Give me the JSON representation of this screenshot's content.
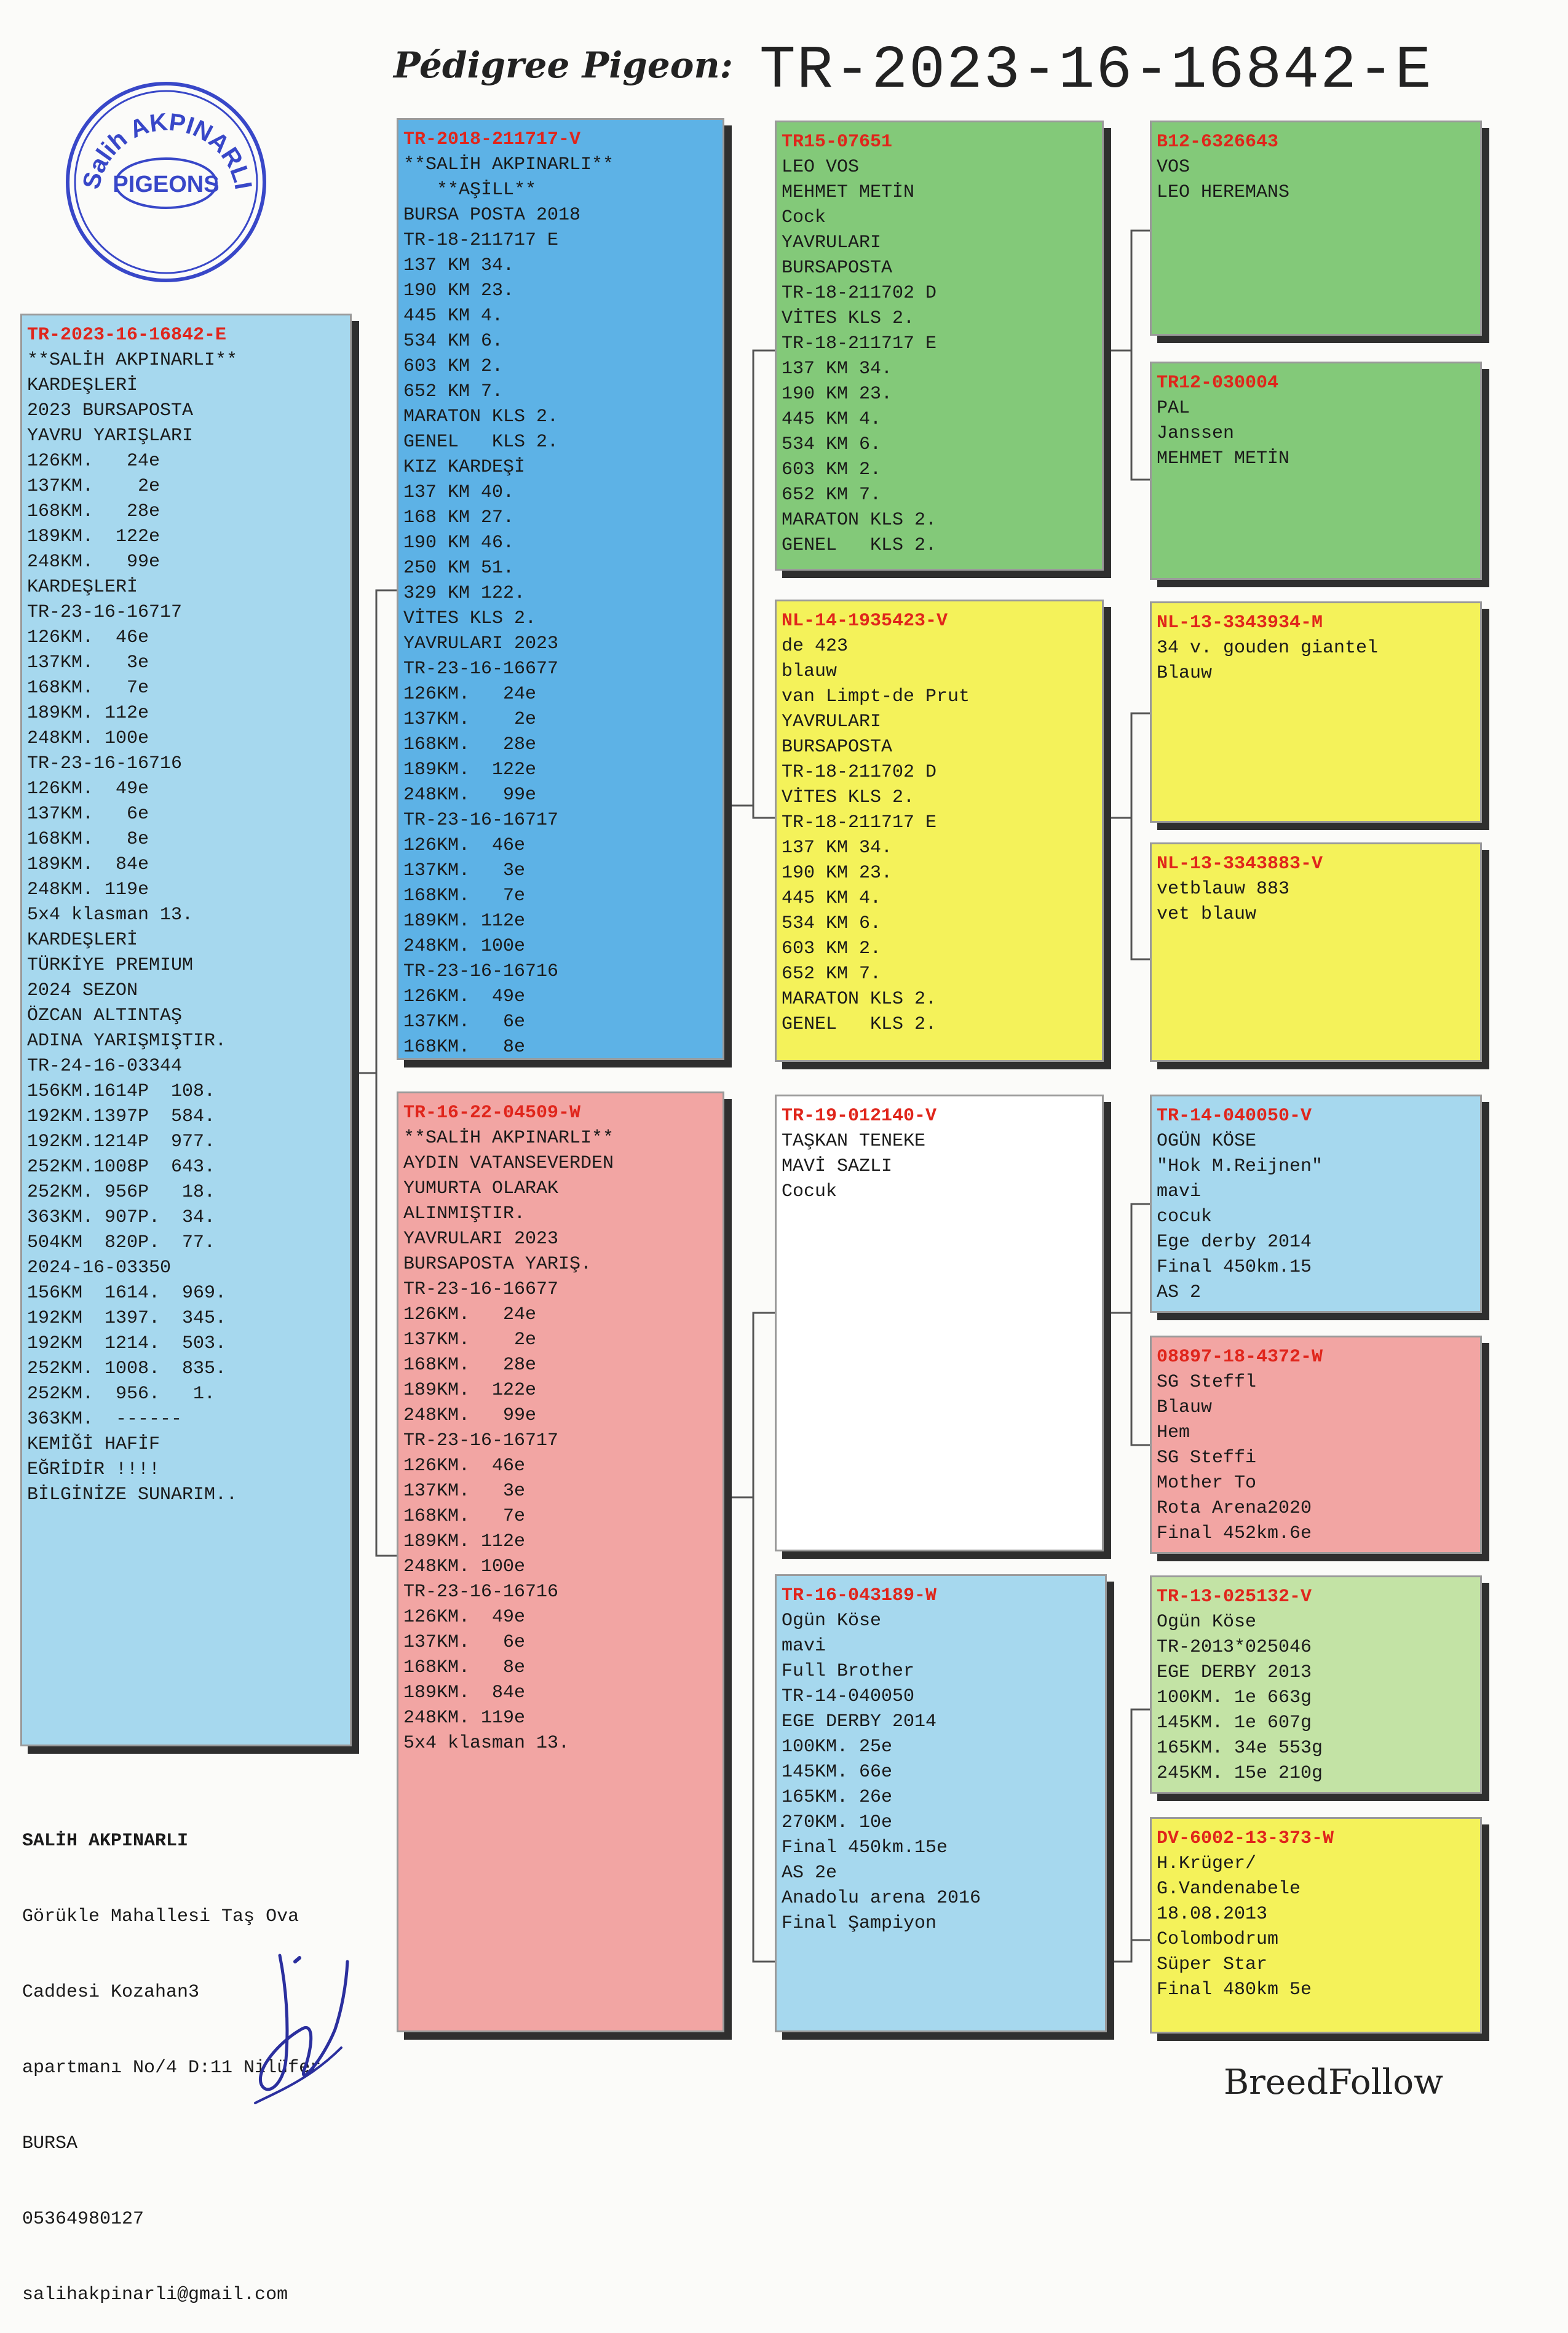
{
  "header": {
    "label": "Pédigree Pigeon:",
    "ring": "TR-2023-16-16842-E"
  },
  "stamp": {
    "top": "Salih AKPINARLI",
    "center": "PIGEONS"
  },
  "subject": {
    "ring": "TR-2023-16-16842-E",
    "lines": [
      "**SALİH AKPINARLI**",
      "KARDEŞLERİ",
      "2023 BURSAPOSTA",
      "YAVRU YARIŞLARI",
      "126KM.   24e",
      "137KM.    2e",
      "168KM.   28e",
      "189KM.  122e",
      "248KM.   99e",
      "KARDEŞLERİ",
      "TR-23-16-16717",
      "126KM.  46e",
      "137KM.   3e",
      "168KM.   7e",
      "189KM. 112e",
      "248KM. 100e",
      "TR-23-16-16716",
      "126KM.  49e",
      "137KM.   6e",
      "168KM.   8e",
      "189KM.  84e",
      "248KM. 119e",
      "5x4 klasman 13.",
      "KARDEŞLERİ",
      "TÜRKİYE PREMIUM",
      "2024 SEZON",
      "ÖZCAN ALTINTAŞ",
      "ADINA YARIŞMIŞTIR.",
      "TR-24-16-03344",
      "156KM.1614P  108.",
      "192KM.1397P  584.",
      "192KM.1214P  977.",
      "252KM.1008P  643.",
      "252KM. 956P   18.",
      "363KM. 907P.  34.",
      "504KM  820P.  77.",
      "2024-16-03350",
      "156KM  1614.  969.",
      "192KM  1397.  345.",
      "192KM  1214.  503.",
      "252KM. 1008.  835.",
      "252KM.  956.   1.",
      "363KM.  ------",
      "KEMİĞİ HAFİF",
      "EĞRİDİR !!!!",
      "BİLGİNİZE SUNARIM.."
    ]
  },
  "sire": {
    "ring": "TR-2018-211717-V",
    "lines": [
      "**SALİH AKPINARLI**",
      "   **AŞİLL**",
      "BURSA POSTA 2018",
      "TR-18-211717 E",
      "137 KM 34.",
      "190 KM 23.",
      "445 KM 4.",
      "534 KM 6.",
      "603 KM 2.",
      "652 KM 7.",
      "MARATON KLS 2.",
      "GENEL   KLS 2.",
      "KIZ KARDEŞİ",
      "137 KM 40.",
      "168 KM 27.",
      "190 KM 46.",
      "250 KM 51.",
      "329 KM 122.",
      "VİTES KLS 2.",
      "YAVRULARI 2023",
      "TR-23-16-16677",
      "126KM.   24e",
      "137KM.    2e",
      "168KM.   28e",
      "189KM.  122e",
      "248KM.   99e",
      "TR-23-16-16717",
      "126KM.  46e",
      "137KM.   3e",
      "168KM.   7e",
      "189KM. 112e",
      "248KM. 100e",
      "TR-23-16-16716",
      "126KM.  49e",
      "137KM.   6e",
      "168KM.   8e"
    ]
  },
  "dam": {
    "ring": "TR-16-22-04509-W",
    "lines": [
      "**SALİH AKPINARLI**",
      "AYDIN VATANSEVERDEN",
      "YUMURTA OLARAK",
      "ALINMIŞTIR.",
      "YAVRULARI 2023",
      "BURSAPOSTA YARIŞ.",
      "TR-23-16-16677",
      "126KM.   24e",
      "137KM.    2e",
      "168KM.   28e",
      "189KM.  122e",
      "248KM.   99e",
      "TR-23-16-16717",
      "126KM.  46e",
      "137KM.   3e",
      "168KM.   7e",
      "189KM. 112e",
      "248KM. 100e",
      "TR-23-16-16716",
      "126KM.  49e",
      "137KM.   6e",
      "168KM.   8e",
      "189KM.  84e",
      "248KM. 119e",
      "5x4 klasman 13."
    ]
  },
  "ss": {
    "ring": "TR15-07651",
    "lines": [
      "LEO VOS",
      "MEHMET METİN",
      "Cock",
      "YAVRULARI",
      "BURSAPOSTA",
      "TR-18-211702 D",
      "VİTES KLS 2.",
      "TR-18-211717 E",
      "137 KM 34.",
      "190 KM 23.",
      "445 KM 4.",
      "534 KM 6.",
      "603 KM 2.",
      "652 KM 7.",
      "MARATON KLS 2.",
      "GENEL   KLS 2."
    ]
  },
  "sd": {
    "ring": "NL-14-1935423-V",
    "lines": [
      "de 423",
      "blauw",
      "van Limpt-de Prut",
      "YAVRULARI",
      "BURSAPOSTA",
      "TR-18-211702 D",
      "VİTES KLS 2.",
      "TR-18-211717 E",
      "137 KM 34.",
      "190 KM 23.",
      "445 KM 4.",
      "534 KM 6.",
      "603 KM 2.",
      "652 KM 7.",
      "MARATON KLS 2.",
      "GENEL   KLS 2."
    ]
  },
  "ds": {
    "ring": "TR-19-012140-V",
    "lines": [
      "TAŞKAN TENEKE",
      "MAVİ SAZLI",
      "Cocuk"
    ]
  },
  "dd": {
    "ring": "TR-16-043189-W",
    "lines": [
      "Ogün Köse",
      "mavi",
      "Full Brother",
      "TR-14-040050",
      "EGE DERBY 2014",
      "100KM. 25e",
      "145KM. 66e",
      "165KM. 26e",
      "270KM. 10e",
      "Final 450km.15e",
      "AS 2e",
      "Anadolu arena 2016",
      "Final Şampiyon"
    ]
  },
  "sss": {
    "ring": "B12-6326643",
    "lines": [
      "VOS",
      "LEO HEREMANS"
    ]
  },
  "ssd": {
    "ring": "TR12-030004",
    "lines": [
      "PAL",
      "Janssen",
      "MEHMET METİN"
    ]
  },
  "sds": {
    "ring": "NL-13-3343934-M",
    "lines": [
      "34 v. gouden giantel",
      "Blauw"
    ]
  },
  "sdd": {
    "ring": "NL-13-3343883-V",
    "lines": [
      "vetblauw 883",
      "vet blauw"
    ]
  },
  "dss": {
    "ring": "TR-14-040050-V",
    "lines": [
      "OGÜN KÖSE",
      "\"Hok M.Reijnen\"",
      "mavi",
      "cocuk",
      "Ege derby 2014",
      "Final 450km.15",
      "AS 2"
    ]
  },
  "dsd": {
    "ring": "08897-18-4372-W",
    "lines": [
      "SG Steffl",
      "Blauw",
      "Hem",
      "SG Steffi",
      "Mother To",
      "Rota Arena2020",
      "Final 452km.6e"
    ]
  },
  "dds": {
    "ring": "TR-13-025132-V",
    "lines": [
      "Ogün Köse",
      "TR-2013*025046",
      "EGE DERBY 2013",
      "100KM. 1e 663g",
      "145KM. 1e 607g",
      "165KM. 34e 553g",
      "245KM. 15e 210g"
    ]
  },
  "ddd": {
    "ring": "DV-6002-13-373-W",
    "lines": [
      "H.Krüger/",
      "G.Vandenabele",
      "18.08.2013",
      "Colombodrum",
      "Süper Star",
      "Final 480km 5e"
    ]
  },
  "contact": {
    "name": "SALİH AKPINARLI",
    "lines": [
      "Görükle Mahallesi Taş Ova",
      "Caddesi Kozahan3",
      "apartmanı No/4 D:11 Nilüfer",
      "BURSA",
      "05364980127",
      "salihakpinarli@gmail.com"
    ]
  },
  "footer": {
    "brand": "BreedFollow"
  }
}
